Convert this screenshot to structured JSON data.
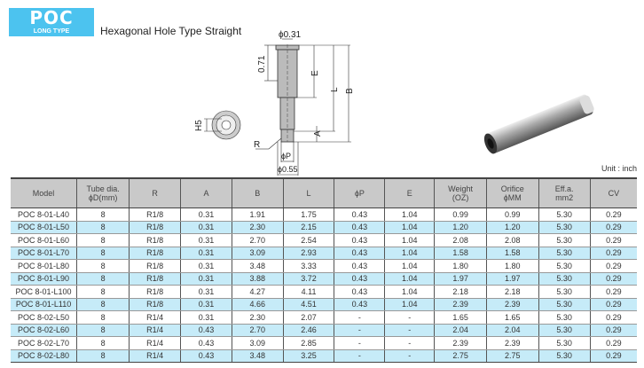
{
  "logo": {
    "main": "POC",
    "sub": "LONG TYPE"
  },
  "title": "Hexagonal Hole Type Straight",
  "drawing_labels": {
    "top_dia": "ϕ0.31",
    "dim_071": "0.71",
    "E": "E",
    "L": "L",
    "B": "B",
    "H5": "H5",
    "A": "A",
    "R": "R",
    "P": "ϕP",
    "bottom_dia": "ϕ0.55"
  },
  "unit": "Unit : inch",
  "colors": {
    "logo": "#4cc3ef",
    "header": "#c9c9c9",
    "row_alt": "#c6ebf8"
  },
  "table": {
    "headers": [
      "Model",
      "Tube dia.\nϕD(mm)",
      "R",
      "A",
      "B",
      "L",
      "ϕP",
      "E",
      "Weight\n(OZ)",
      "Orifice\nϕMM",
      "Eff.a.\nmm2",
      "CV"
    ],
    "rows": [
      [
        "POC 8-01-L40",
        "8",
        "R1/8",
        "0.31",
        "1.91",
        "1.75",
        "0.43",
        "1.04",
        "0.99",
        "0.99",
        "5.30",
        "0.29"
      ],
      [
        "POC 8-01-L50",
        "8",
        "R1/8",
        "0.31",
        "2.30",
        "2.15",
        "0.43",
        "1.04",
        "1.20",
        "1.20",
        "5.30",
        "0.29"
      ],
      [
        "POC 8-01-L60",
        "8",
        "R1/8",
        "0.31",
        "2.70",
        "2.54",
        "0.43",
        "1.04",
        "2.08",
        "2.08",
        "5.30",
        "0.29"
      ],
      [
        "POC 8-01-L70",
        "8",
        "R1/8",
        "0.31",
        "3.09",
        "2.93",
        "0.43",
        "1.04",
        "1.58",
        "1.58",
        "5.30",
        "0.29"
      ],
      [
        "POC 8-01-L80",
        "8",
        "R1/8",
        "0.31",
        "3.48",
        "3.33",
        "0.43",
        "1.04",
        "1.80",
        "1.80",
        "5.30",
        "0.29"
      ],
      [
        "POC 8-01-L90",
        "8",
        "R1/8",
        "0.31",
        "3.88",
        "3.72",
        "0.43",
        "1.04",
        "1.97",
        "1.97",
        "5.30",
        "0.29"
      ],
      [
        "POC 8-01-L100",
        "8",
        "R1/8",
        "0.31",
        "4.27",
        "4.11",
        "0.43",
        "1.04",
        "2.18",
        "2.18",
        "5.30",
        "0.29"
      ],
      [
        "POC 8-01-L110",
        "8",
        "R1/8",
        "0.31",
        "4.66",
        "4.51",
        "0.43",
        "1.04",
        "2.39",
        "2.39",
        "5.30",
        "0.29"
      ],
      [
        "POC 8-02-L50",
        "8",
        "R1/4",
        "0.31",
        "2.30",
        "2.07",
        "-",
        "-",
        "1.65",
        "1.65",
        "5.30",
        "0.29"
      ],
      [
        "POC 8-02-L60",
        "8",
        "R1/4",
        "0.43",
        "2.70",
        "2.46",
        "-",
        "-",
        "2.04",
        "2.04",
        "5.30",
        "0.29"
      ],
      [
        "POC 8-02-L70",
        "8",
        "R1/4",
        "0.43",
        "3.09",
        "2.85",
        "-",
        "-",
        "2.39",
        "2.39",
        "5.30",
        "0.29"
      ],
      [
        "POC 8-02-L80",
        "8",
        "R1/4",
        "0.43",
        "3.48",
        "3.25",
        "-",
        "-",
        "2.75",
        "2.75",
        "5.30",
        "0.29"
      ]
    ]
  }
}
